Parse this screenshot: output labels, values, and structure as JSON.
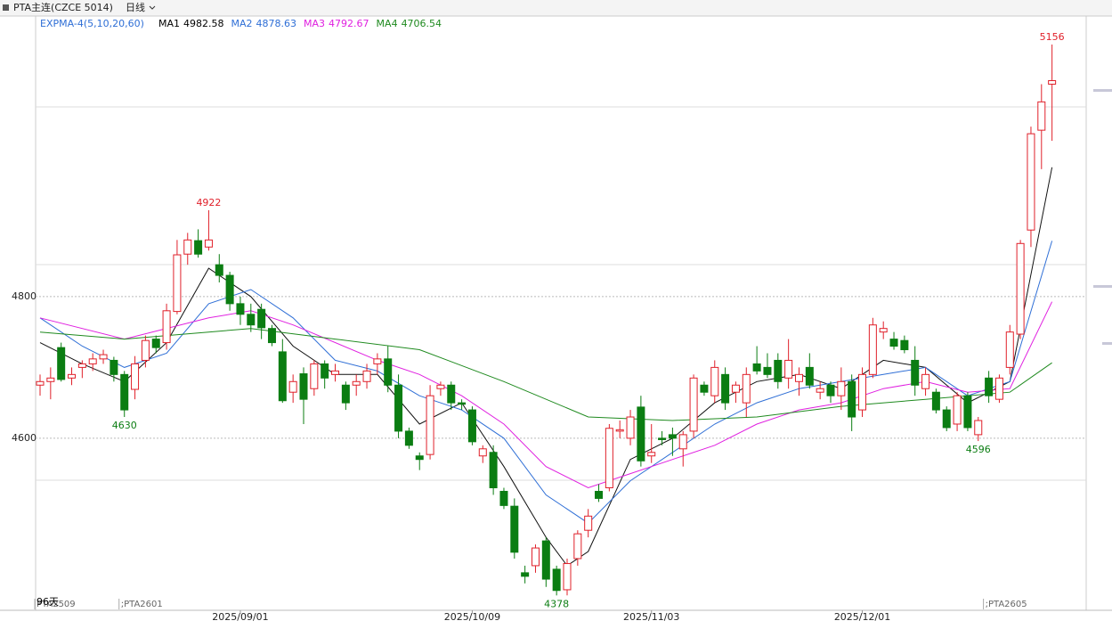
{
  "toolbar": {
    "symbol": "PTA主连(CZCE 5014)",
    "period": "日线"
  },
  "chart_data": {
    "type": "candlestick",
    "indicator": "EXPMA-4(5,10,20,60)",
    "up_color": "#e0202a",
    "down_color": "#0b7d12",
    "ohlc": [
      [
        4675,
        4690,
        4660,
        4680
      ],
      [
        4680,
        4700,
        4655,
        4685
      ],
      [
        4728,
        4735,
        4680,
        4683
      ],
      [
        4685,
        4700,
        4675,
        4690
      ],
      [
        4700,
        4710,
        4685,
        4705
      ],
      [
        4705,
        4720,
        4695,
        4712
      ],
      [
        4712,
        4725,
        4705,
        4718
      ],
      [
        4710,
        4715,
        4680,
        4690
      ],
      [
        4690,
        4695,
        4630,
        4640
      ],
      [
        4669,
        4716,
        4655,
        4705
      ],
      [
        4710,
        4745,
        4700,
        4738
      ],
      [
        4740,
        4745,
        4720,
        4728
      ],
      [
        4735,
        4790,
        4725,
        4780
      ],
      [
        4779,
        4880,
        4775,
        4859
      ],
      [
        4860,
        4890,
        4845,
        4880
      ],
      [
        4879,
        4895,
        4855,
        4860
      ],
      [
        4870,
        4922,
        4865,
        4880
      ],
      [
        4845,
        4860,
        4820,
        4830
      ],
      [
        4830,
        4835,
        4780,
        4790
      ],
      [
        4790,
        4800,
        4760,
        4775
      ],
      [
        4775,
        4790,
        4750,
        4760
      ],
      [
        4782,
        4790,
        4740,
        4756
      ],
      [
        4755,
        4760,
        4730,
        4735
      ],
      [
        4722,
        4740,
        4650,
        4653
      ],
      [
        4665,
        4690,
        4650,
        4680
      ],
      [
        4691,
        4700,
        4620,
        4655
      ],
      [
        4670,
        4710,
        4660,
        4705
      ],
      [
        4705,
        4710,
        4670,
        4685
      ],
      [
        4690,
        4705,
        4680,
        4695
      ],
      [
        4675,
        4680,
        4640,
        4650
      ],
      [
        4675,
        4690,
        4660,
        4680
      ],
      [
        4680,
        4705,
        4670,
        4695
      ],
      [
        4705,
        4720,
        4690,
        4712
      ],
      [
        4712,
        4730,
        4665,
        4675
      ],
      [
        4675,
        4690,
        4600,
        4610
      ],
      [
        4610,
        4615,
        4585,
        4590
      ],
      [
        4575,
        4580,
        4555,
        4570
      ],
      [
        4577,
        4675,
        4570,
        4660
      ],
      [
        4670,
        4680,
        4660,
        4675
      ],
      [
        4675,
        4680,
        4640,
        4650
      ],
      [
        4650,
        4655,
        4640,
        4648
      ],
      [
        4640,
        4645,
        4590,
        4595
      ],
      [
        4575,
        4590,
        4565,
        4585
      ],
      [
        4580,
        4590,
        4520,
        4530
      ],
      [
        4525,
        4530,
        4500,
        4505
      ],
      [
        4504,
        4515,
        4430,
        4439
      ],
      [
        4410,
        4420,
        4395,
        4405
      ],
      [
        4420,
        4450,
        4410,
        4445
      ],
      [
        4455,
        4460,
        4390,
        4401
      ],
      [
        4415,
        4420,
        4378,
        4385
      ],
      [
        4386,
        4430,
        4378,
        4423
      ],
      [
        4430,
        4470,
        4420,
        4465
      ],
      [
        4470,
        4500,
        4460,
        4490
      ],
      [
        4525,
        4535,
        4510,
        4515
      ],
      [
        4530,
        4620,
        4525,
        4614
      ],
      [
        4610,
        4625,
        4600,
        4612
      ],
      [
        4600,
        4640,
        4590,
        4630
      ],
      [
        4644,
        4660,
        4560,
        4568
      ],
      [
        4575,
        4620,
        4565,
        4580
      ],
      [
        4600,
        4610,
        4590,
        4598
      ],
      [
        4605,
        4615,
        4575,
        4600
      ],
      [
        4585,
        4610,
        4560,
        4605
      ],
      [
        4610,
        4690,
        4600,
        4685
      ],
      [
        4675,
        4680,
        4660,
        4665
      ],
      [
        4660,
        4710,
        4650,
        4700
      ],
      [
        4690,
        4700,
        4640,
        4650
      ],
      [
        4665,
        4680,
        4650,
        4675
      ],
      [
        4650,
        4700,
        4630,
        4690
      ],
      [
        4705,
        4730,
        4690,
        4695
      ],
      [
        4700,
        4720,
        4685,
        4690
      ],
      [
        4710,
        4720,
        4670,
        4680
      ],
      [
        4685,
        4740,
        4670,
        4710
      ],
      [
        4680,
        4700,
        4660,
        4690
      ],
      [
        4700,
        4720,
        4670,
        4675
      ],
      [
        4665,
        4680,
        4655,
        4670
      ],
      [
        4675,
        4680,
        4650,
        4660
      ],
      [
        4660,
        4700,
        4640,
        4680
      ],
      [
        4680,
        4690,
        4610,
        4630
      ],
      [
        4640,
        4700,
        4630,
        4690
      ],
      [
        4690,
        4770,
        4685,
        4760
      ],
      [
        4750,
        4765,
        4740,
        4755
      ],
      [
        4740,
        4750,
        4725,
        4730
      ],
      [
        4738,
        4745,
        4720,
        4725
      ],
      [
        4710,
        4730,
        4660,
        4675
      ],
      [
        4670,
        4700,
        4660,
        4690
      ],
      [
        4665,
        4670,
        4635,
        4640
      ],
      [
        4640,
        4645,
        4610,
        4615
      ],
      [
        4620,
        4665,
        4610,
        4660
      ],
      [
        4660,
        4665,
        4610,
        4615
      ],
      [
        4605,
        4630,
        4596,
        4625
      ],
      [
        4685,
        4695,
        4650,
        4660
      ],
      [
        4655,
        4690,
        4650,
        4685
      ],
      [
        4700,
        4760,
        4690,
        4750
      ],
      [
        4747,
        4880,
        4740,
        4875
      ],
      [
        4894,
        5040,
        4870,
        5030
      ],
      [
        5035,
        5100,
        4980,
        5075
      ],
      [
        5100,
        5156,
        5020,
        5105
      ]
    ],
    "series": [
      {
        "name": "MA1",
        "color": "#111111",
        "x": [
          0,
          4,
          8,
          12,
          16,
          20,
          24,
          28,
          32,
          36,
          40,
          44,
          48,
          50,
          52,
          56,
          60,
          64,
          68,
          72,
          76,
          80,
          84,
          88,
          92,
          96
        ],
        "values": [
          4735,
          4705,
          4680,
          4735,
          4840,
          4800,
          4730,
          4690,
          4690,
          4620,
          4650,
          4560,
          4460,
          4420,
          4440,
          4570,
          4600,
          4650,
          4680,
          4690,
          4670,
          4710,
          4700,
          4650,
          4680,
          4982.58
        ]
      },
      {
        "name": "MA2",
        "color": "#2f6fd6",
        "x": [
          0,
          4,
          8,
          12,
          16,
          20,
          24,
          28,
          32,
          36,
          40,
          44,
          48,
          52,
          56,
          60,
          64,
          68,
          72,
          76,
          80,
          84,
          88,
          92,
          96
        ],
        "values": [
          4770,
          4730,
          4700,
          4720,
          4790,
          4810,
          4770,
          4710,
          4695,
          4660,
          4640,
          4600,
          4520,
          4480,
          4540,
          4580,
          4620,
          4650,
          4670,
          4680,
          4690,
          4700,
          4660,
          4680,
          4878.63
        ]
      },
      {
        "name": "MA3",
        "color": "#e020e0",
        "x": [
          0,
          8,
          16,
          20,
          24,
          32,
          36,
          40,
          44,
          48,
          52,
          56,
          60,
          64,
          68,
          72,
          76,
          80,
          84,
          88,
          92,
          96
        ],
        "values": [
          4770,
          4740,
          4770,
          4780,
          4760,
          4710,
          4690,
          4660,
          4620,
          4560,
          4530,
          4550,
          4570,
          4590,
          4620,
          4640,
          4650,
          4670,
          4680,
          4665,
          4670,
          4792.67
        ]
      },
      {
        "name": "MA4",
        "color": "#1f8a1f",
        "x": [
          0,
          8,
          16,
          20,
          28,
          36,
          44,
          52,
          60,
          68,
          76,
          84,
          92,
          96
        ],
        "values": [
          4750,
          4740,
          4750,
          4755,
          4740,
          4725,
          4680,
          4630,
          4625,
          4630,
          4645,
          4655,
          4665,
          4706.54
        ]
      }
    ],
    "ylim": [
      4357,
      5200
    ],
    "yticks": [
      4600,
      4800
    ],
    "grid": true,
    "xticks": [
      {
        "value": 19,
        "label": "2025/09/01"
      },
      {
        "value": 41,
        "label": "2025/10/09"
      },
      {
        "value": 58,
        "label": "2025/11/03"
      },
      {
        "value": 78,
        "label": "2025/12/01"
      }
    ],
    "extremes": [
      {
        "candle": 96,
        "field": 1
      },
      {
        "candle": 16,
        "field": 1
      },
      {
        "candle": 8,
        "field": 2
      },
      {
        "candle": 49,
        "field": 2
      },
      {
        "candle": 89,
        "field": 2
      }
    ],
    "days_label": "96天",
    "contracts": [
      {
        "value": 0,
        "label": "PTA2509"
      },
      {
        "value": 8,
        "label": ";PTA2601"
      },
      {
        "value": 90,
        "label": ";PTA2605"
      }
    ]
  }
}
